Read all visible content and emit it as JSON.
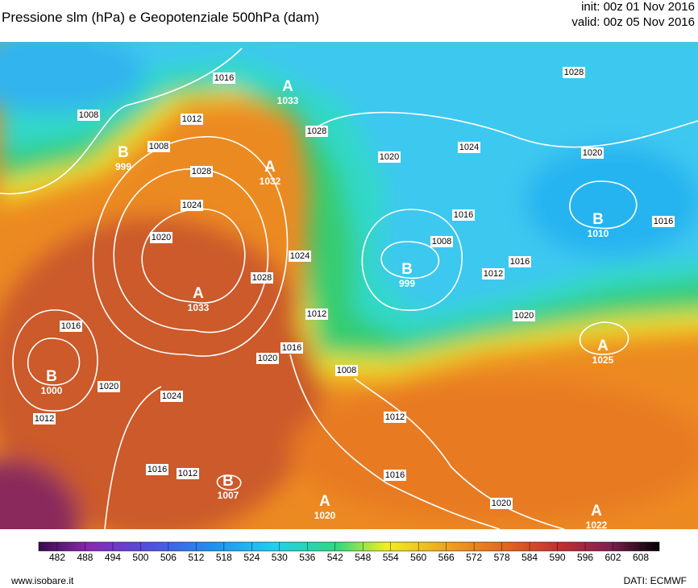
{
  "header": {
    "title": "Pressione slm (hPa) e Geopotenziale 500hPa (dam)",
    "init": "init: 00z 01 Nov 2016",
    "valid": "valid: 00z 05 Nov 2016"
  },
  "centers": [
    {
      "label": "A",
      "value": "1033"
    },
    {
      "label": "B",
      "value": "999"
    },
    {
      "label": "A",
      "value": "1032"
    },
    {
      "label": "A",
      "value": "1033"
    },
    {
      "label": "B",
      "value": "999"
    },
    {
      "label": "B",
      "value": "1010"
    },
    {
      "label": "A",
      "value": "1025"
    },
    {
      "label": "B",
      "value": "1000"
    },
    {
      "label": "B",
      "value": "1007"
    },
    {
      "label": "A",
      "value": "1020"
    },
    {
      "label": "A",
      "value": "1022"
    }
  ],
  "isobar_labels": [
    "1008",
    "1012",
    "1016",
    "1008",
    "1028",
    "1024",
    "1020",
    "1028",
    "1024",
    "1016",
    "1020",
    "1012",
    "1024",
    "1020",
    "1016",
    "1012",
    "1008",
    "1028",
    "1020",
    "1024",
    "1020",
    "1028",
    "1016",
    "1008",
    "1012",
    "1016",
    "1020",
    "1016",
    "1012",
    "1016",
    "1016",
    "1012",
    "1020"
  ],
  "colorbar": {
    "ticks": [
      482,
      488,
      494,
      500,
      506,
      512,
      518,
      524,
      530,
      536,
      542,
      548,
      554,
      560,
      566,
      572,
      578,
      584,
      590,
      596,
      602,
      608
    ]
  },
  "footer": {
    "site": "www.isobare.it",
    "source": "DATI: ECMWF"
  }
}
